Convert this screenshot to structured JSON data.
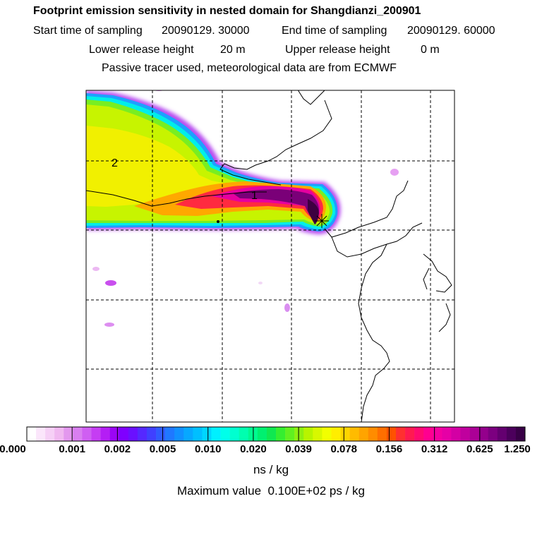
{
  "header": {
    "title": "Footprint emission sensitivity in nested domain for Shangdianzi_200901",
    "sampling_line": {
      "start_label": "Start time of sampling",
      "start_value": "20090129. 30000",
      "end_label": "End time of sampling",
      "end_value": "20090129. 60000"
    },
    "release_line": {
      "lower_label": "Lower release height",
      "lower_value": "20 m",
      "upper_label": "Upper release height",
      "upper_value": "0 m"
    },
    "note": "Passive tracer used, meteorological data are from ECMWF"
  },
  "map": {
    "labels": [
      "1",
      "2"
    ],
    "receptor_symbol": "*"
  },
  "legend": {
    "ticks": [
      "0.000",
      "0.001",
      "0.002",
      "0.005",
      "0.010",
      "0.020",
      "0.039",
      "0.078",
      "0.156",
      "0.312",
      "0.625",
      "1.250"
    ],
    "colors": [
      "#ffffff",
      "#fbe6fb",
      "#f6d0f6",
      "#f0b8f0",
      "#e398ee",
      "#d97ff0",
      "#cf5ff2",
      "#c53df3",
      "#b41ef5",
      "#9b05f5",
      "#7f00ff",
      "#6a10ff",
      "#5528ff",
      "#4040ff",
      "#2f5bff",
      "#1f78ff",
      "#1190ff",
      "#07a8ff",
      "#00bfff",
      "#00d6ff",
      "#00f0ff",
      "#00ffea",
      "#00ffd0",
      "#00ffb0",
      "#00fa90",
      "#00f070",
      "#10e850",
      "#35ee30",
      "#60f020",
      "#8ef010",
      "#b8f400",
      "#d8f800",
      "#f2ff00",
      "#ffee00",
      "#ffd400",
      "#ffbb00",
      "#ffa400",
      "#ff8c00",
      "#ff6f00",
      "#ff5200",
      "#ff3030",
      "#ff1a50",
      "#ff0a70",
      "#ff0090",
      "#f400a0",
      "#e600a6",
      "#d300a4",
      "#c0009e",
      "#ab0096",
      "#94008c",
      "#7c0080",
      "#640070",
      "#4c005c",
      "#380046"
    ],
    "unit": "ns / kg",
    "max_label": "Maximum value",
    "max_value": "0.100E+02 ps / kg"
  }
}
